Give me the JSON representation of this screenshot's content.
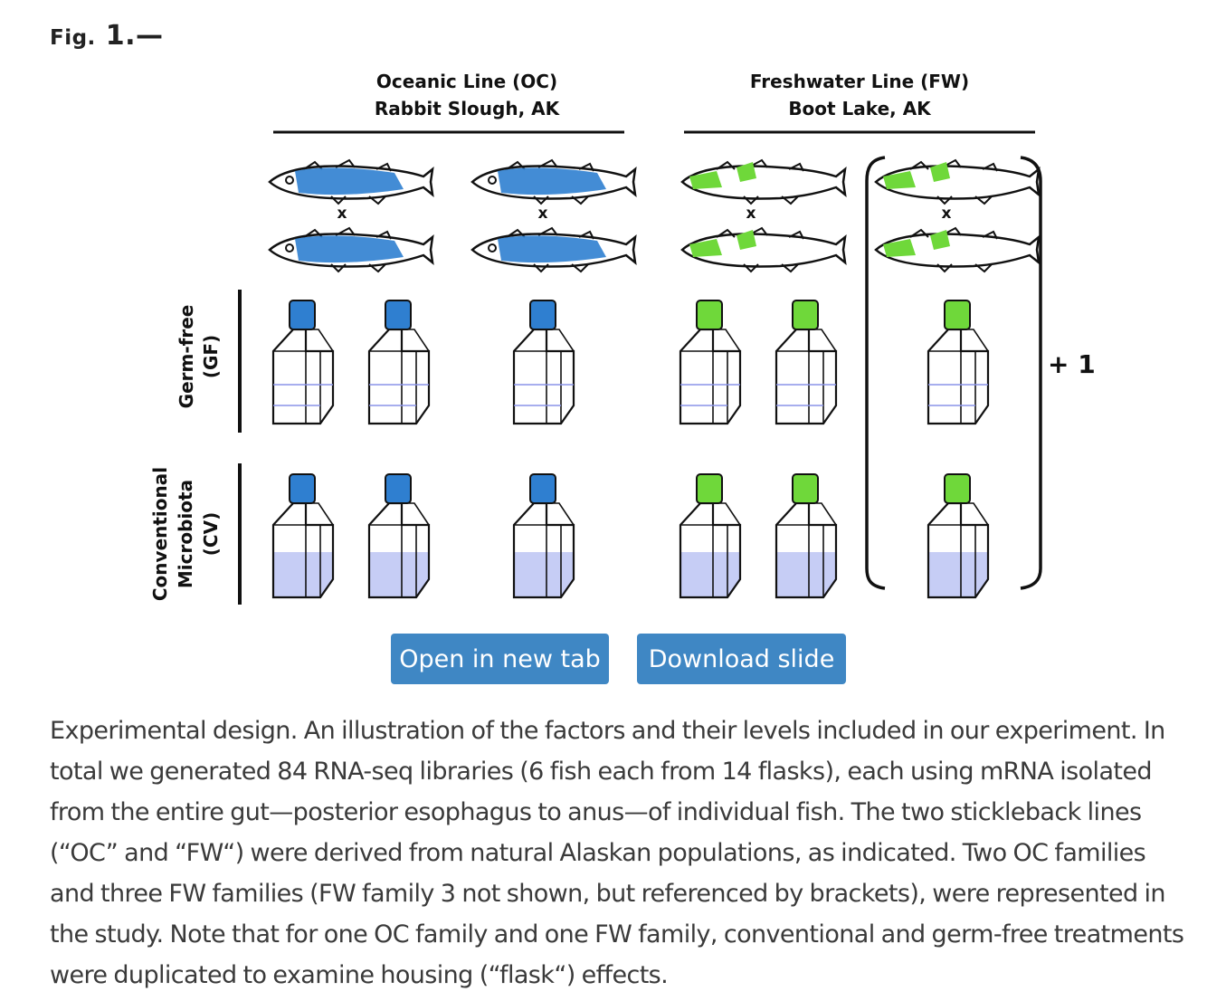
{
  "figure": {
    "label_prefix": "Fig.",
    "label_num": " 1.—",
    "oc_title_1": "Oceanic Line (OC)",
    "oc_title_2": "Rabbit Slough, AK",
    "fw_title_1": "Freshwater Line (FW)",
    "fw_title_2": "Boot Lake, AK",
    "cross_symbol": "x",
    "gf_label_1": "Germ-free",
    "gf_label_2": "(GF)",
    "cv_label_1": "Conventional",
    "cv_label_2": "Microbiota",
    "cv_label_3": "(CV)",
    "plus_one": "+ 1",
    "colors": {
      "oc": "#2f7fd0",
      "fw": "#6fd83a",
      "media": "#c6cdf5"
    }
  },
  "buttons": {
    "open_tab": "Open in new tab",
    "download": "Download slide"
  },
  "caption": "Experimental design. An illustration of the factors and their levels included in our experiment. In total we generated 84 RNA-seq libraries (6 fish each from 14 flasks), each using mRNA isolated from the entire gut—posterior esophagus to anus—of individual fish. The two stickleback lines (“OC” and “FW“) were derived from natural Alaskan populations, as indicated. Two OC families and three FW families (FW family 3 not shown, but referenced by brackets), were represented in the study. Note that for one OC family and one FW family, conventional and germ-free treatments were duplicated to examine housing (“flask“) effects."
}
